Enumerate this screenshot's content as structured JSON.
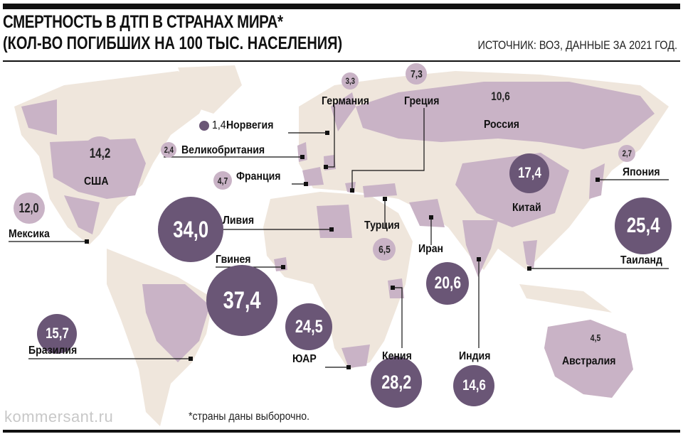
{
  "header": {
    "title": "СМЕРТНОСТЬ В ДТП В СТРАНАХ МИРА*",
    "subtitle": "(КОЛ-ВО ПОГИБШИХ НА 100 ТЫС. НАСЕЛЕНИЯ)",
    "source": "ИСТОЧНИК: ВОЗ, ДАННЫЕ ЗА 2021 ГОД."
  },
  "colors": {
    "land": "#efe6dc",
    "highlight": "#c9b3c6",
    "bubble": "#6a5676"
  },
  "countries": [
    {
      "name": "Норвегия",
      "value": "1,4"
    },
    {
      "name": "Великобритания",
      "value": "2,4"
    },
    {
      "name": "Германия",
      "value": "3,3"
    },
    {
      "name": "Греция",
      "value": "7,3"
    },
    {
      "name": "Россия",
      "value": "10,6"
    },
    {
      "name": "Франция",
      "value": "4,7"
    },
    {
      "name": "США",
      "value": "14,2"
    },
    {
      "name": "Мексика",
      "value": "12,0"
    },
    {
      "name": "Ливия",
      "value": "34,0"
    },
    {
      "name": "Турция",
      "value": "6,5"
    },
    {
      "name": "Иран",
      "value": "20,6"
    },
    {
      "name": "Гвинея",
      "value": "37,4"
    },
    {
      "name": "Китай",
      "value": "17,4"
    },
    {
      "name": "Япония",
      "value": "2,7"
    },
    {
      "name": "Таиланд",
      "value": "25,4"
    },
    {
      "name": "Бразилия",
      "value": "15,7"
    },
    {
      "name": "ЮАР",
      "value": "24,5"
    },
    {
      "name": "Кения",
      "value": "28,2"
    },
    {
      "name": "Индия",
      "value": "14,6"
    },
    {
      "name": "Австралия",
      "value": "4,5"
    }
  ],
  "footer": {
    "watermark": "kommersant.ru",
    "note": "*страны даны выборочно."
  }
}
